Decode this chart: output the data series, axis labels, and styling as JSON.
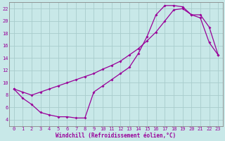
{
  "xlabel": "Windchill (Refroidissement éolien,°C)",
  "bg_color": "#c8e8e8",
  "grid_color": "#a8cccc",
  "line_color": "#990099",
  "xlim": [
    -0.5,
    23.5
  ],
  "ylim": [
    3.0,
    23.0
  ],
  "xticks": [
    0,
    1,
    2,
    3,
    4,
    5,
    6,
    7,
    8,
    9,
    10,
    11,
    12,
    13,
    14,
    15,
    16,
    17,
    18,
    19,
    20,
    21,
    22,
    23
  ],
  "yticks": [
    4,
    6,
    8,
    10,
    12,
    14,
    16,
    18,
    20,
    22
  ],
  "curve1_x": [
    0,
    1,
    2,
    3,
    4,
    5,
    6,
    7,
    8,
    9,
    10,
    11,
    12,
    13,
    14,
    15,
    16,
    17,
    18,
    19,
    20,
    21,
    22,
    23
  ],
  "curve1_y": [
    9.0,
    7.5,
    6.5,
    5.2,
    4.8,
    4.5,
    4.5,
    4.3,
    4.3,
    8.5,
    9.5,
    10.5,
    11.5,
    12.5,
    14.7,
    17.5,
    21.0,
    22.5,
    22.5,
    22.3,
    21.0,
    21.0,
    19.0,
    14.5
  ],
  "curve2_x": [
    0,
    1,
    2,
    3,
    4,
    5,
    6,
    7,
    8,
    9,
    10,
    11,
    12,
    13,
    14,
    15,
    16,
    17,
    18,
    19,
    20,
    21,
    22,
    23
  ],
  "curve2_y": [
    9.0,
    8.5,
    8.0,
    8.5,
    9.0,
    9.5,
    10.0,
    10.5,
    11.0,
    11.5,
    12.2,
    12.8,
    13.5,
    14.5,
    15.5,
    16.8,
    18.2,
    20.0,
    21.8,
    22.0,
    21.0,
    20.5,
    16.5,
    14.5
  ]
}
